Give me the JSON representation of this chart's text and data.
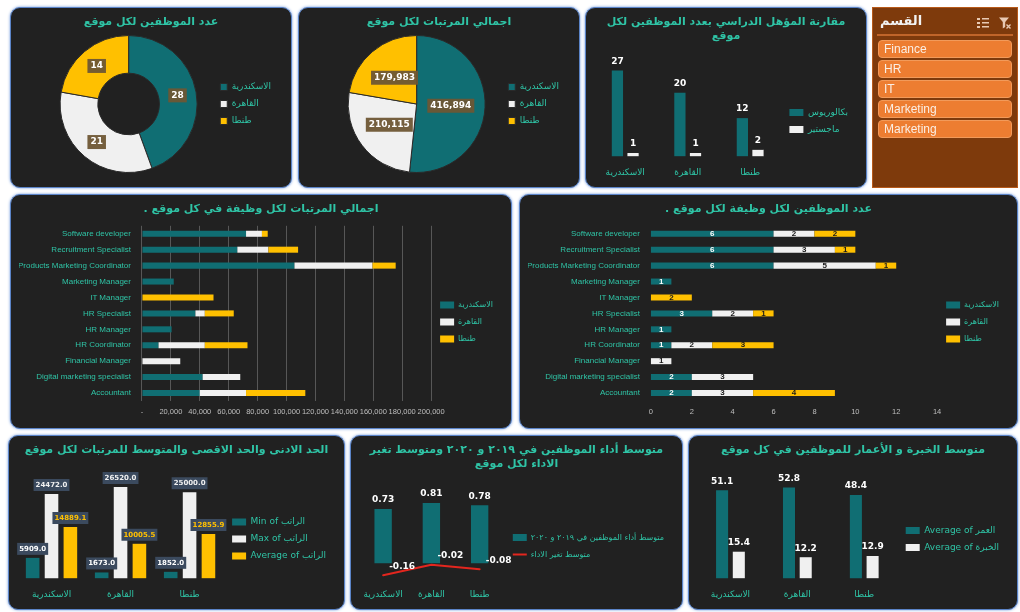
{
  "chart_data": [
    {
      "type": "donut",
      "title": "عدد الموظفين لكل موقع",
      "categories": [
        "الاسكندرية",
        "القاهرة",
        "طنطا"
      ],
      "values": [
        28,
        21,
        14
      ],
      "colors": [
        "#106e73",
        "#f0f0f0",
        "#ffc000"
      ],
      "data_labels": true,
      "legend": "right"
    },
    {
      "type": "pie",
      "title": "اجمالي المرتبات لكل موقع",
      "categories": [
        "الاسكندرية",
        "القاهرة",
        "طنطا"
      ],
      "values": [
        416894,
        210115,
        179983
      ],
      "value_labels": [
        "416,894",
        "210,115",
        "179,983"
      ],
      "colors": [
        "#106e73",
        "#f0f0f0",
        "#ffc000"
      ],
      "legend": "right"
    },
    {
      "type": "bar",
      "title": "مقارنة المؤهل الدراسي بعدد الموظفين لكل موقع",
      "categories": [
        "الاسكندرية",
        "القاهرة",
        "طنطا"
      ],
      "series": [
        {
          "name": "بكالوريوس",
          "color": "#106e73",
          "values": [
            27,
            20,
            12
          ]
        },
        {
          "name": "ماجستير",
          "color": "#f0f0f0",
          "values": [
            1,
            1,
            2
          ]
        }
      ],
      "data_labels": true,
      "legend": "right",
      "tick_labels": "x"
    },
    {
      "type": "other",
      "title": "القسم",
      "categories": [
        "Finance",
        "HR",
        "IT",
        "Marketing",
        "Marketing"
      ]
    },
    {
      "type": "bar",
      "title": "اجمالي المرتبات لكل وظيفة في كل موقع .",
      "orientation": "horizontal",
      "stacked": true,
      "categories": [
        "Software developer",
        "Recruitment Specialist",
        "Products Marketing Coordinator",
        "Marketing Manager",
        "IT Manager",
        "HR Specialist",
        "HR Manager",
        "HR Coordinator",
        "Financial Manager",
        "Digital marketing specialist",
        "Accountant"
      ],
      "series": [
        {
          "name": "الاسكندرية",
          "color": "#106e73",
          "values": [
            72000,
            66000,
            105500,
            22000,
            null,
            37000,
            20500,
            11500,
            null,
            42000,
            40000
          ]
        },
        {
          "name": "القاهرة",
          "color": "#f0f0f0",
          "values": [
            11000,
            21500,
            54000,
            null,
            null,
            6500,
            null,
            32000,
            26500,
            26000,
            32000
          ]
        },
        {
          "name": "طنطا",
          "color": "#ffc000",
          "values": [
            4000,
            20500,
            16000,
            null,
            49500,
            20000,
            null,
            29500,
            null,
            null,
            41000
          ]
        }
      ],
      "xlim": [
        0,
        200000
      ],
      "xticks": [
        {
          "value": 0,
          "label": "-"
        },
        {
          "value": 20000,
          "label": "20,000"
        },
        {
          "value": 40000,
          "label": "40,000"
        },
        {
          "value": 60000,
          "label": "60,000"
        },
        {
          "value": 80000,
          "label": "80,000"
        },
        {
          "value": 100000,
          "label": "100,000"
        },
        {
          "value": 120000,
          "label": "120,000"
        },
        {
          "value": 140000,
          "label": "140,000"
        },
        {
          "value": 160000,
          "label": "160,000"
        },
        {
          "value": 180000,
          "label": "180,000"
        },
        {
          "value": 200000,
          "label": "200,000"
        }
      ],
      "grid": "x",
      "legend": "right"
    },
    {
      "type": "bar",
      "title": "عدد الموظفين لكل وظيفة لكل موقع .",
      "orientation": "horizontal",
      "stacked": true,
      "categories": [
        "Software developer",
        "Recruitment Specialist",
        "Products Marketing Coordinator",
        "Marketing Manager",
        "IT Manager",
        "HR Specialist",
        "HR Manager",
        "HR Coordinator",
        "Financial Manager",
        "Digital marketing specialist",
        "Accountant"
      ],
      "series": [
        {
          "name": "الاسكندرية",
          "color": "#106e73",
          "values": [
            6,
            6,
            6,
            1,
            null,
            3,
            1,
            1,
            null,
            2,
            2
          ]
        },
        {
          "name": "القاهرة",
          "color": "#f0f0f0",
          "values": [
            2,
            3,
            5,
            null,
            null,
            2,
            null,
            2,
            1,
            3,
            3
          ]
        },
        {
          "name": "طنطا",
          "color": "#ffc000",
          "values": [
            2,
            1,
            1,
            null,
            2,
            1,
            null,
            3,
            null,
            null,
            4
          ]
        }
      ],
      "xlim": [
        0,
        14
      ],
      "xticks": [
        0,
        2,
        4,
        6,
        8,
        10,
        12,
        14
      ],
      "data_labels": true,
      "legend": "right"
    },
    {
      "type": "bar",
      "title": "الحد الادنى والحد الاقصى والمتوسط للمرتبات لكل موقع",
      "categories": [
        "الاسكندرية",
        "القاهرة",
        "طنطا"
      ],
      "series": [
        {
          "name": "Min of الراتب",
          "color": "#106e73",
          "values": [
            5909,
            1673,
            1852
          ],
          "value_labels": [
            "5909.0",
            "1673.0",
            "1852.0"
          ]
        },
        {
          "name": "Max of الراتب",
          "color": "#f0f0f0",
          "values": [
            24472,
            26520,
            25000
          ],
          "value_labels": [
            "24472.0",
            "26520.0",
            "25000.0"
          ]
        },
        {
          "name": "Average of الراتب",
          "color": "#ffc000",
          "values": [
            14889.1,
            10005.5,
            12855.9
          ],
          "value_labels": [
            "14889.1",
            "10005.5",
            "12855.9"
          ]
        }
      ],
      "legend": "right",
      "tick_labels": "x"
    },
    {
      "type": "bar",
      "title": "متوسط أداء الموظفين في ٢٠١٩ و ٢٠٢٠ ومتوسط تغير الاداء لكل موقع",
      "categories": [
        "الاسكندرية",
        "القاهرة",
        "طنطا"
      ],
      "series": [
        {
          "name": "متوسط أداء الموظفين في ٢٠١٩ و ٢٠٢٠",
          "color": "#106e73",
          "values": [
            0.73,
            0.81,
            0.78
          ]
        },
        {
          "name": "متوسط تغير الاداء",
          "type": "line",
          "color": "#e3261e",
          "values": [
            -0.16,
            -0.02,
            -0.08
          ]
        }
      ],
      "data_labels": true,
      "legend": "right",
      "tick_labels": "x"
    },
    {
      "type": "bar",
      "title": "متوسط الخبرة و الأعمار للموظفين في كل موقع",
      "categories": [
        "الاسكندرية",
        "القاهرة",
        "طنطا"
      ],
      "series": [
        {
          "name": "Average of العمر",
          "color": "#106e73",
          "values": [
            51.1,
            52.8,
            48.4
          ]
        },
        {
          "name": "Average of الخبرة",
          "color": "#f0f0f0",
          "values": [
            15.4,
            12.2,
            12.9
          ]
        }
      ],
      "data_labels": true,
      "legend": "right",
      "tick_labels": "x"
    }
  ]
}
